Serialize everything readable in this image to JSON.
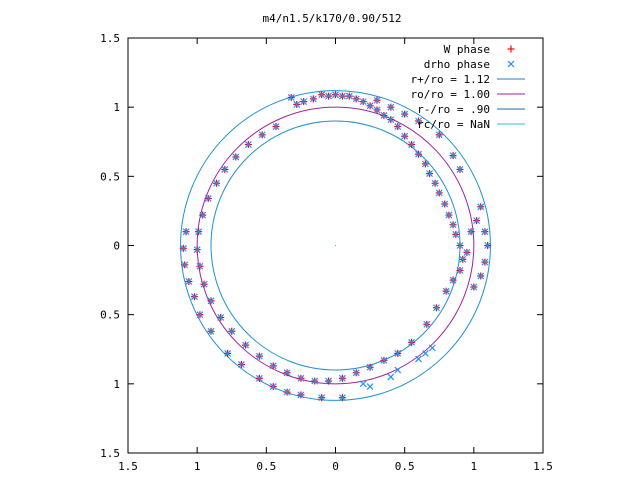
{
  "chart_data": {
    "type": "scatter",
    "title": "m4/n1.5/k170/0.90/512",
    "xlim": [
      -1.5,
      1.5
    ],
    "ylim": [
      -1.5,
      1.5
    ],
    "xticks": [
      -1.5,
      -1,
      -0.5,
      0,
      0.5,
      1,
      1.5
    ],
    "yticks": [
      -1.5,
      -1,
      -0.5,
      0,
      0.5,
      1,
      1.5
    ],
    "xtick_labels": [
      "1.5",
      "1",
      "0.5",
      "0",
      "0.5",
      "1",
      "1.5"
    ],
    "ytick_labels": [
      "1.5",
      "1",
      "0.5",
      "0",
      "0.5",
      "1",
      "1.5"
    ],
    "grid": false,
    "legend_position": "top-right",
    "legend": [
      {
        "label": "W phase",
        "kind": "plus",
        "color": "#ff0000"
      },
      {
        "label": "drho phase",
        "kind": "cross",
        "color": "#1e90ff"
      },
      {
        "label": "r+/ro = 1.12",
        "kind": "line",
        "color": "#1e7fd0"
      },
      {
        "label": "ro/ro = 1.00",
        "kind": "line",
        "color": "#a020a0"
      },
      {
        "label": "r-/ro = .90",
        "kind": "line",
        "color": "#1e6ab0"
      },
      {
        "label": "rc/ro = NaN",
        "kind": "line",
        "color": "#30c0d0"
      }
    ],
    "circles": [
      {
        "name": "r+/ro = 1.12",
        "r": 1.12,
        "color": "#1e90d0"
      },
      {
        "name": "ro/ro = 1.00",
        "r": 1.0,
        "color": "#a020a0"
      },
      {
        "name": "r-/ro = .90",
        "r": 0.9,
        "color": "#1e90d0"
      }
    ],
    "series": [
      {
        "name": "W phase",
        "color": "#ff0000",
        "points": [
          [
            -0.32,
            1.07
          ],
          [
            -0.28,
            1.02
          ],
          [
            -0.23,
            1.04
          ],
          [
            -0.16,
            1.06
          ],
          [
            -0.1,
            1.09
          ],
          [
            -0.05,
            1.08
          ],
          [
            0.0,
            1.09
          ],
          [
            0.05,
            1.08
          ],
          [
            0.1,
            1.08
          ],
          [
            0.15,
            1.06
          ],
          [
            0.2,
            1.04
          ],
          [
            0.25,
            1.01
          ],
          [
            0.3,
            0.98
          ],
          [
            0.35,
            0.94
          ],
          [
            0.4,
            0.91
          ],
          [
            0.45,
            0.86
          ],
          [
            0.5,
            0.79
          ],
          [
            0.55,
            0.73
          ],
          [
            0.6,
            0.66
          ],
          [
            0.65,
            0.59
          ],
          [
            0.68,
            0.52
          ],
          [
            0.72,
            0.45
          ],
          [
            0.75,
            0.38
          ],
          [
            0.79,
            0.3
          ],
          [
            0.82,
            0.22
          ],
          [
            0.85,
            0.15
          ],
          [
            0.87,
            0.08
          ],
          [
            0.9,
            0.0
          ],
          [
            0.92,
            -0.1
          ],
          [
            0.9,
            -0.18
          ],
          [
            0.85,
            -0.25
          ],
          [
            0.8,
            -0.33
          ],
          [
            0.73,
            -0.45
          ],
          [
            0.66,
            -0.57
          ],
          [
            0.55,
            -0.7
          ],
          [
            0.45,
            -0.78
          ],
          [
            0.35,
            -0.83
          ],
          [
            0.25,
            -0.88
          ],
          [
            0.15,
            -0.92
          ],
          [
            0.05,
            -0.96
          ],
          [
            -0.05,
            -0.98
          ],
          [
            -0.15,
            -0.98
          ],
          [
            -0.25,
            -0.96
          ],
          [
            -0.35,
            -0.92
          ],
          [
            -0.45,
            -0.87
          ],
          [
            -0.55,
            -0.8
          ],
          [
            -0.65,
            -0.72
          ],
          [
            -0.75,
            -0.62
          ],
          [
            -0.83,
            -0.52
          ],
          [
            -0.9,
            -0.4
          ],
          [
            -0.95,
            -0.28
          ],
          [
            -0.98,
            -0.15
          ],
          [
            -1.0,
            -0.03
          ],
          [
            -0.99,
            0.1
          ],
          [
            -0.96,
            0.22
          ],
          [
            -0.92,
            0.34
          ],
          [
            -0.86,
            0.45
          ],
          [
            -0.8,
            0.55
          ],
          [
            -0.72,
            0.64
          ],
          [
            -0.63,
            0.73
          ],
          [
            -0.53,
            0.8
          ],
          [
            -0.43,
            0.86
          ],
          [
            -1.08,
            0.1
          ],
          [
            -1.1,
            -0.02
          ],
          [
            -1.09,
            -0.14
          ],
          [
            -1.06,
            -0.26
          ],
          [
            -1.02,
            -0.37
          ],
          [
            -0.98,
            -0.5
          ],
          [
            -0.9,
            -0.62
          ],
          [
            -0.78,
            -0.78
          ],
          [
            -0.68,
            -0.86
          ],
          [
            -0.55,
            -0.96
          ],
          [
            -0.45,
            -1.02
          ],
          [
            -0.35,
            -1.06
          ],
          [
            -0.25,
            -1.08
          ],
          [
            -0.1,
            -1.1
          ],
          [
            0.05,
            -1.1
          ],
          [
            0.95,
            -0.05
          ],
          [
            0.98,
            0.1
          ],
          [
            1.02,
            0.18
          ],
          [
            1.05,
            0.28
          ],
          [
            1.08,
            0.1
          ],
          [
            1.1,
            0.0
          ],
          [
            1.08,
            -0.12
          ],
          [
            1.05,
            -0.22
          ],
          [
            1.0,
            -0.3
          ],
          [
            0.3,
            1.05
          ],
          [
            0.4,
            1.0
          ],
          [
            0.5,
            0.95
          ],
          [
            0.6,
            0.9
          ],
          [
            0.75,
            0.8
          ],
          [
            0.85,
            0.65
          ],
          [
            0.9,
            0.55
          ]
        ]
      },
      {
        "name": "drho phase",
        "color": "#1e90ff",
        "points": [
          [
            -0.32,
            1.07
          ],
          [
            -0.28,
            1.02
          ],
          [
            -0.23,
            1.04
          ],
          [
            -0.16,
            1.06
          ],
          [
            -0.1,
            1.09
          ],
          [
            -0.05,
            1.08
          ],
          [
            0.0,
            1.09
          ],
          [
            0.05,
            1.08
          ],
          [
            0.1,
            1.08
          ],
          [
            0.15,
            1.06
          ],
          [
            0.2,
            1.04
          ],
          [
            0.25,
            1.01
          ],
          [
            0.3,
            0.98
          ],
          [
            0.35,
            0.94
          ],
          [
            0.4,
            0.91
          ],
          [
            0.45,
            0.86
          ],
          [
            0.5,
            0.79
          ],
          [
            0.55,
            0.73
          ],
          [
            0.6,
            0.66
          ],
          [
            0.65,
            0.59
          ],
          [
            0.68,
            0.52
          ],
          [
            0.72,
            0.45
          ],
          [
            0.75,
            0.38
          ],
          [
            0.79,
            0.3
          ],
          [
            0.82,
            0.22
          ],
          [
            0.85,
            0.15
          ],
          [
            0.87,
            0.08
          ],
          [
            0.9,
            0.0
          ],
          [
            0.92,
            -0.1
          ],
          [
            0.9,
            -0.18
          ],
          [
            0.85,
            -0.25
          ],
          [
            0.8,
            -0.33
          ],
          [
            0.73,
            -0.45
          ],
          [
            0.66,
            -0.57
          ],
          [
            0.55,
            -0.7
          ],
          [
            0.45,
            -0.78
          ],
          [
            0.35,
            -0.83
          ],
          [
            0.25,
            -0.88
          ],
          [
            0.15,
            -0.92
          ],
          [
            0.05,
            -0.96
          ],
          [
            -0.05,
            -0.98
          ],
          [
            -0.15,
            -0.98
          ],
          [
            -0.25,
            -0.96
          ],
          [
            -0.35,
            -0.92
          ],
          [
            -0.45,
            -0.87
          ],
          [
            -0.55,
            -0.8
          ],
          [
            -0.65,
            -0.72
          ],
          [
            -0.75,
            -0.62
          ],
          [
            -0.83,
            -0.52
          ],
          [
            -0.9,
            -0.4
          ],
          [
            -0.95,
            -0.28
          ],
          [
            -0.98,
            -0.15
          ],
          [
            -1.0,
            -0.03
          ],
          [
            -0.99,
            0.1
          ],
          [
            -0.96,
            0.22
          ],
          [
            -0.92,
            0.34
          ],
          [
            -0.86,
            0.45
          ],
          [
            -0.8,
            0.55
          ],
          [
            -0.72,
            0.64
          ],
          [
            -0.63,
            0.73
          ],
          [
            -0.53,
            0.8
          ],
          [
            -0.43,
            0.86
          ],
          [
            -1.08,
            0.1
          ],
          [
            -1.1,
            -0.02
          ],
          [
            -1.09,
            -0.14
          ],
          [
            -1.06,
            -0.26
          ],
          [
            -1.02,
            -0.37
          ],
          [
            -0.98,
            -0.5
          ],
          [
            -0.9,
            -0.62
          ],
          [
            -0.78,
            -0.78
          ],
          [
            -0.68,
            -0.86
          ],
          [
            -0.55,
            -0.96
          ],
          [
            -0.45,
            -1.02
          ],
          [
            -0.35,
            -1.06
          ],
          [
            -0.25,
            -1.08
          ],
          [
            -0.1,
            -1.1
          ],
          [
            0.05,
            -1.1
          ],
          [
            0.95,
            -0.05
          ],
          [
            0.98,
            0.1
          ],
          [
            1.02,
            0.18
          ],
          [
            1.05,
            0.28
          ],
          [
            1.08,
            0.1
          ],
          [
            1.1,
            0.0
          ],
          [
            1.08,
            -0.12
          ],
          [
            1.05,
            -0.22
          ],
          [
            1.0,
            -0.3
          ],
          [
            0.3,
            1.05
          ],
          [
            0.4,
            1.0
          ],
          [
            0.5,
            0.95
          ],
          [
            0.6,
            0.9
          ],
          [
            0.75,
            0.8
          ],
          [
            0.85,
            0.65
          ],
          [
            0.9,
            0.55
          ],
          [
            0.6,
            -0.82
          ],
          [
            0.65,
            -0.78
          ],
          [
            0.7,
            -0.74
          ],
          [
            0.4,
            -0.95
          ],
          [
            0.45,
            -0.9
          ],
          [
            0.2,
            -1.0
          ],
          [
            0.25,
            -1.02
          ]
        ]
      }
    ]
  }
}
